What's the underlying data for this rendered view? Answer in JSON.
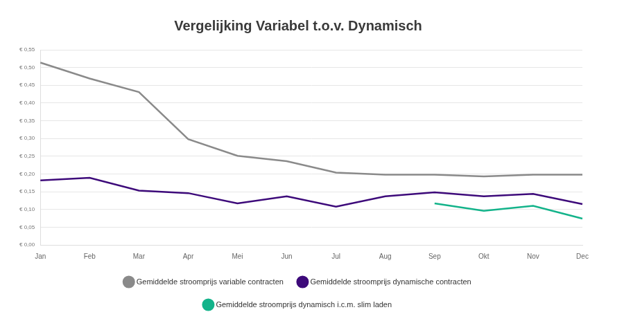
{
  "chart_data": {
    "type": "line",
    "title": "Vergelijking Variabel t.o.v. Dynamisch",
    "categories": [
      "Jan",
      "Feb",
      "Mar",
      "Apr",
      "Mei",
      "Jun",
      "Jul",
      "Aug",
      "Sep",
      "Okt",
      "Nov",
      "Dec"
    ],
    "series": [
      {
        "name": "Gemiddelde stroomprijs variable contracten",
        "color": "#8a8a8a",
        "values": [
          0.514,
          0.469,
          0.431,
          0.298,
          0.251,
          0.236,
          0.204,
          0.198,
          0.198,
          0.193,
          0.198,
          0.198
        ]
      },
      {
        "name": "Gemiddelde stroomprijs dynamische contracten",
        "color": "#3d0a7a",
        "values": [
          0.182,
          0.189,
          0.153,
          0.146,
          0.117,
          0.137,
          0.108,
          0.137,
          0.148,
          0.137,
          0.144,
          0.115
        ]
      },
      {
        "name": "Gemiddelde stroomprijs dynamisch i.c.m. slim laden",
        "color": "#13b38a",
        "values": [
          null,
          null,
          null,
          null,
          null,
          null,
          null,
          null,
          0.117,
          0.096,
          0.11,
          0.074
        ]
      }
    ],
    "ylim": [
      0,
      0.55
    ],
    "yticks": [
      {
        "value": 0,
        "label": "€ 0,00"
      },
      {
        "value": 0.05,
        "label": "€ 0,05"
      },
      {
        "value": 0.1,
        "label": "€ 0,10"
      },
      {
        "value": 0.15,
        "label": "€ 0,15"
      },
      {
        "value": 0.2,
        "label": "€ 0,20"
      },
      {
        "value": 0.25,
        "label": "€ 0,25"
      },
      {
        "value": 0.3,
        "label": "€ 0,30"
      },
      {
        "value": 0.35,
        "label": "€ 0,35"
      },
      {
        "value": 0.4,
        "label": "€ 0,40"
      },
      {
        "value": 0.45,
        "label": "€ 0,45"
      },
      {
        "value": 0.5,
        "label": "€ 0,50"
      },
      {
        "value": 0.55,
        "label": "€ 0,55"
      }
    ],
    "grid": true,
    "legend": "bottom",
    "marker": "none"
  }
}
